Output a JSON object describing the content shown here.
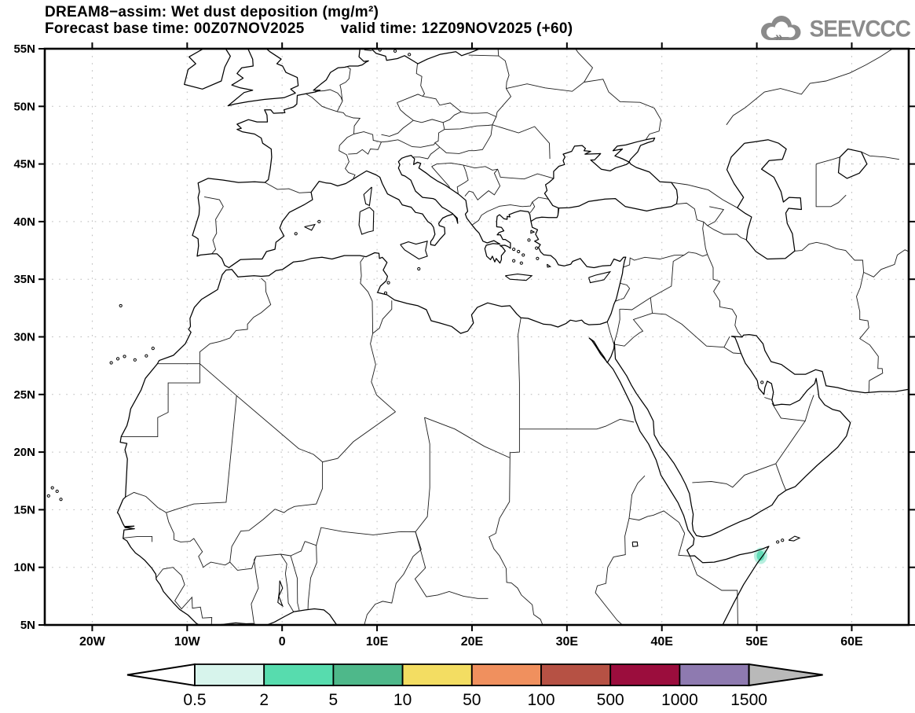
{
  "header": {
    "title": "DREAM8−assim: Wet dust deposition (mg/m²)",
    "forecast_base_time": "Forecast base time: 00Z07NOV2025",
    "valid_time": "valid time: 12Z09NOV2025 (+60)"
  },
  "logo": {
    "text": "SEEVCCC",
    "icon": "cloud-double-chevron-icon",
    "color": "#8b8b8b"
  },
  "map": {
    "lon_min": -25,
    "lon_max": 66,
    "lat_min": 5,
    "lat_max": 55,
    "x_tick_labels": [
      "20W",
      "10W",
      "0",
      "10E",
      "20E",
      "30E",
      "40E",
      "50E",
      "60E"
    ],
    "x_tick_lons": [
      -20,
      -10,
      0,
      10,
      20,
      30,
      40,
      50,
      60
    ],
    "y_tick_labels": [
      "55N",
      "50N",
      "45N",
      "40N",
      "35N",
      "30N",
      "25N",
      "20N",
      "15N",
      "10N",
      "5N"
    ],
    "y_tick_lats": [
      55,
      50,
      45,
      40,
      35,
      30,
      25,
      20,
      15,
      10,
      5
    ],
    "grid_lat_step": 5,
    "grid_lon_step": 10,
    "grid_color": "#b9b9b9",
    "coast_color": "#000000",
    "border_color": "#1c1c1c",
    "frame_color": "#000000"
  },
  "colorbar": {
    "tick_labels": [
      "0.5",
      "2",
      "5",
      "10",
      "50",
      "100",
      "500",
      "1000",
      "1500"
    ],
    "segment_colors": [
      "#d7f4ec",
      "#57dcae",
      "#4eb88a",
      "#f3dd62",
      "#f0905e",
      "#b65144",
      "#9b0d3d",
      "#8e7ab0"
    ],
    "below_min_color": "#ffffff",
    "above_max_color": "#b9b9b9",
    "outline_color": "#000000"
  },
  "chart_data": {
    "type": "heatmap",
    "title": "DREAM8−assim: Wet dust deposition (mg/m²)",
    "variable": "Wet dust deposition",
    "units": "mg/m²",
    "model": "DREAM8-assim",
    "forecast_base_time": "00Z07NOV2025",
    "valid_time": "12Z09NOV2025",
    "lead_hours": "+60",
    "scale_levels": [
      0.5,
      2,
      5,
      10,
      50,
      100,
      500,
      1000,
      1500
    ],
    "lon_range": [
      -25,
      66
    ],
    "lat_range": [
      5,
      55
    ],
    "grid": "dotted graticule, 10 deg lon x 5 deg lat",
    "legend_position": "bottom horizontal colorbar with open end arrows",
    "data_points": [
      {
        "lon": 50.4,
        "lat": 11.0,
        "level_bin": "2–5",
        "note": "single small wet-deposition spot on Somali coast near Horn of Africa"
      }
    ]
  }
}
